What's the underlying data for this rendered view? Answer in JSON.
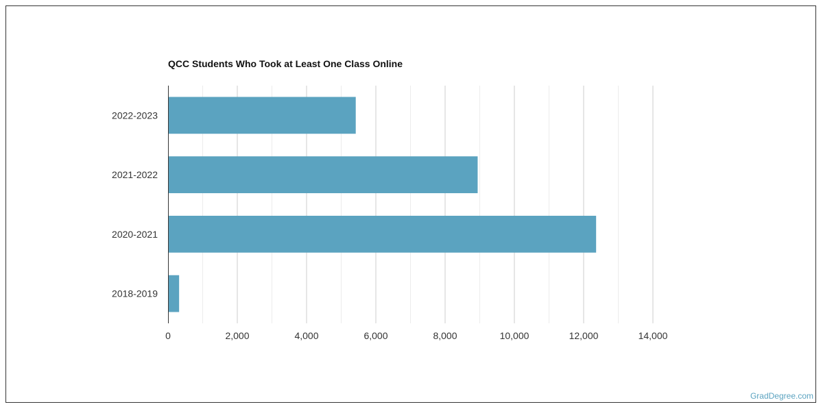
{
  "chart_data": {
    "type": "bar",
    "orientation": "horizontal",
    "title": "QCC Students Who Took at Least One Class Online",
    "categories": [
      "2022-2023",
      "2021-2022",
      "2020-2021",
      "2018-2019"
    ],
    "values": [
      5420,
      8940,
      12360,
      320
    ],
    "xlim": [
      0,
      14000
    ],
    "xticks": [
      0,
      2000,
      4000,
      6000,
      8000,
      10000,
      12000,
      14000
    ],
    "xtick_labels": [
      "0",
      "2,000",
      "4,000",
      "6,000",
      "8,000",
      "10,000",
      "12,000",
      "14,000"
    ],
    "xlabel": "",
    "ylabel": "",
    "grid": true,
    "bar_color": "#5ba3c0"
  },
  "footer": {
    "source_link": "GradDegree.com"
  }
}
